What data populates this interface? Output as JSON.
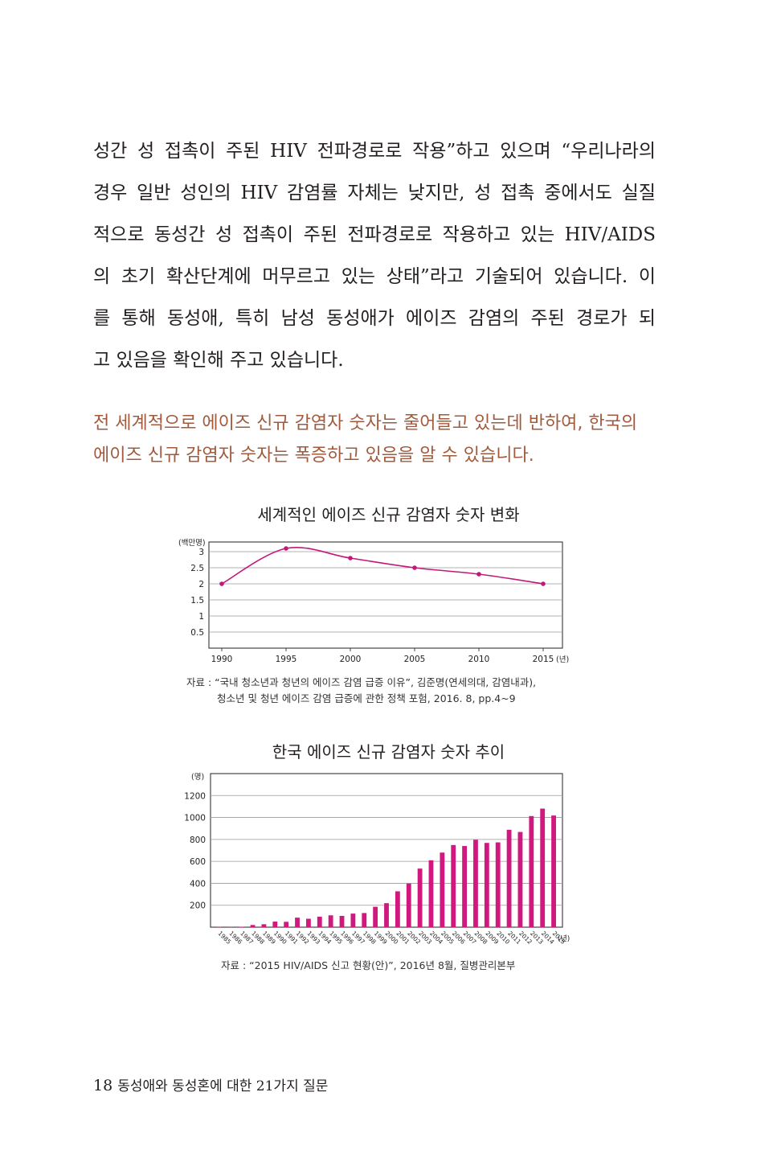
{
  "body": {
    "lines": [
      "성간 성 접촉이 주된 HIV 전파경로로 작용”하고 있으며 “우리나라의",
      "경우 일반 성인의 HIV 감염률 자체는 낮지만, 성 접촉 중에서도 실질",
      "적으로 동성간 성 접촉이 주된 전파경로로 작용하고 있는 HIV/AIDS",
      "의 초기 확산단계에 머무르고 있는 상태”라고 기술되어 있습니다. 이",
      "를 통해 동성애, 특히 남성 동성애가 에이즈 감염의 주된 경로가 되",
      "고 있음을 확인해 주고 있습니다."
    ]
  },
  "highlight": {
    "lines": [
      "전 세계적으로 에이즈 신규 감염자 숫자는 줄어들고 있는데 반하여, 한국의",
      "에이즈 신규 감염자 숫자는 폭증하고 있음을 알 수 있습니다."
    ]
  },
  "chart_data": [
    {
      "type": "line",
      "title": "세계적인 에이즈 신규 감염자 숫자 변화",
      "y_unit": "(백만명)",
      "x_unit": "(년)",
      "x": [
        1990,
        1995,
        2000,
        2005,
        2010,
        2015
      ],
      "x_tick_labels": [
        "1990",
        "1995",
        "2000",
        "2005",
        "2010",
        "2015"
      ],
      "values": [
        2.0,
        3.1,
        2.8,
        2.5,
        2.3,
        2.0
      ],
      "y_ticks": [
        0.5,
        1,
        1.5,
        2,
        2.5,
        3
      ],
      "y_tick_labels": [
        "0.5",
        "1",
        "1.5",
        "2",
        "2.5",
        "3"
      ],
      "ylim": [
        0,
        3.3
      ],
      "grid": true,
      "color": "#c2187a",
      "source_lines": [
        "자료 : “국내 청소년과 청년의 에이즈 감염 급증 이유”, 김준명(연세의대, 감염내과),",
        "청소년 및 청년 에이즈 감염 급증에 관한 정책 포험, 2016. 8, pp.4~9"
      ]
    },
    {
      "type": "bar",
      "title": "한국 에이즈 신규 감염자 숫자 추이",
      "y_unit": "(명)",
      "x_unit": "(년)",
      "categories": [
        "1985",
        "1986",
        "1987",
        "1988",
        "1989",
        "1990",
        "1991",
        "1992",
        "1993",
        "1994",
        "1995",
        "1996",
        "1997",
        "1998",
        "1999",
        "2000",
        "2001",
        "2002",
        "2003",
        "2004",
        "2005",
        "2006",
        "2007",
        "2008",
        "2009",
        "2010",
        "2011",
        "2012",
        "2013",
        "2014",
        "2015"
      ],
      "values": [
        2,
        1,
        4,
        20,
        27,
        51,
        49,
        87,
        77,
        96,
        108,
        103,
        124,
        129,
        186,
        219,
        327,
        398,
        534,
        610,
        680,
        749,
        740,
        797,
        768,
        773,
        888,
        868,
        1013,
        1081,
        1018
      ],
      "y_ticks": [
        200,
        400,
        600,
        800,
        1000,
        1200
      ],
      "y_tick_labels": [
        "200",
        "400",
        "600",
        "800",
        "1000",
        "1200"
      ],
      "ylim": [
        0,
        1400
      ],
      "grid": true,
      "color": "#d0197f",
      "source_lines": [
        "자료 : “2015 HIV/AIDS 신고 현황(안)”, 2016년 8월, 질병관리본부"
      ]
    }
  ],
  "footer": {
    "page_number": "18",
    "book_title": "동성애와 동성혼에 대한 21가지 질문"
  }
}
